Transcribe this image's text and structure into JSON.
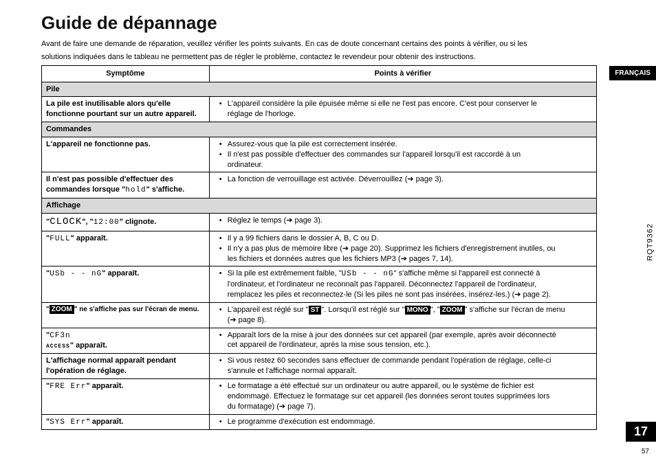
{
  "title": "Guide de dépannage",
  "intro_l1": "Avant de faire une demande de réparation, veuillez vérifier les points suivants. En cas de doute concernant certains des points à vérifier, ou si les",
  "intro_l2": "solutions indiquées dans le tableau ne permettent pas de régler le problème, contactez le revendeur pour obtenir des instructions.",
  "head": {
    "symptom": "Symptôme",
    "points": "Points à vérifier"
  },
  "sec": {
    "pile": "Pile",
    "commandes": "Commandes",
    "affichage": "Affichage"
  },
  "row1": {
    "s_l1": "La pile est inutilisable alors qu'elle",
    "s_l2": "fonctionne pourtant sur un autre appareil.",
    "p1a": "L'appareil considère la pile épuisée même si elle ne l'est pas encore. C'est pour conserver le",
    "p1b": "réglage de l'horloge."
  },
  "row2": {
    "s": "L'appareil ne fonctionne pas.",
    "p1": "Assurez-vous que la pile est correctement insérée.",
    "p2a": "Il n'est pas possible d'effectuer des commandes sur l'appareil lorsqu'il est raccordé à un",
    "p2b": "ordinateur."
  },
  "row3": {
    "s_l1": "Il n'est pas possible d'effectuer des",
    "s_l2a": "commandes lorsque \"",
    "s_l2b": "hold",
    "s_l2c": "\" s'affiche.",
    "p1a": "La fonction de verrouillage est activée. Déverrouillez (",
    "p1b": " page 3)."
  },
  "row4": {
    "s_a": "\"",
    "s_b": "CLOCK",
    "s_c": "\", \"",
    "s_d": "12:00",
    "s_e": "\" clignote.",
    "p1a": "Réglez le temps (",
    "p1b": " page 3)."
  },
  "row5": {
    "s_a": "\"",
    "s_b": "FULL",
    "s_c": "\" apparaît.",
    "p1": "Il y a 99 fichiers dans le dossier A, B, C ou D.",
    "p2a": "Il n'y a pas plus de mémoire libre (",
    "p2b": " page 20). Supprimez les fichiers d'enregistrement inutiles, ou",
    "p2c": "les fichiers et données autres que les fichiers MP3 (",
    "p2d": " pages 7, 14)."
  },
  "row6": {
    "s_a": "\"",
    "s_b": "USb - - nG",
    "s_c": "\" apparaît.",
    "p1a": "Si la pile est extrêmement faible, \"",
    "p1b": "USb - - nG",
    "p1c": "\" s'affiche même si l'appareil est connecté à",
    "p1d": "l'ordinateur, et l'ordinateur ne reconnaît pas l'appareil. Déconnectez l'appareil de l'ordinateur,",
    "p1e": "remplacez les piles et reconnectez-le (Si les piles ne sont pas insérées, insérez-les.) (",
    "p1f": " page 2)."
  },
  "row7": {
    "s_a": "\"",
    "s_b": "ZOOM",
    "s_c": "\" ne s'affiche pas sur l'écran de menu.",
    "p1a": "L'appareil est réglé sur \"",
    "p1b": "ST",
    "p1c": "\". Lorsqu'il est réglé sur \"",
    "p1d": "MONO",
    "p1e": "\", \"",
    "p1f": "ZOOM",
    "p1g": "\" s'affiche sur l'écran de menu",
    "p1h": "(",
    "p1i": " page 8)."
  },
  "row8": {
    "s_a": "\"",
    "s_b": "CF3n",
    "s_b2": "ACCESS",
    "s_c": "\" apparaît.",
    "p1a": "Apparaît lors de la mise à jour des données sur cet appareil (par exemple, après avoir déconnecté",
    "p1b": "cet appareil de l'ordinateur, après la mise sous tension, etc.)."
  },
  "row9": {
    "s_l1": "L'affichage normal apparaît pendant",
    "s_l2": "l'opération de réglage.",
    "p1a": "Si vous restez 60 secondes sans effectuer de commande pendant l'opération de réglage, celle-ci",
    "p1b": "s'annule et l'affichage normal apparaît."
  },
  "row10": {
    "s_a": "\"",
    "s_b": "FRE Err",
    "s_c": "\" apparaît.",
    "p1a": "Le formatage a été effectué sur un ordinateur ou autre appareil, ou le système de fichier est",
    "p1b": "endommagé. Effectuez le formatage sur cet appareil (les données seront toutes supprimées lors",
    "p1c": "du formatage) (",
    "p1d": " page 7)."
  },
  "row11": {
    "s_a": "\"",
    "s_b": "SYS Err",
    "s_c": "\" apparaît.",
    "p1": " Le programme d'exécution est endommagé."
  },
  "lang_tab": "FRANÇAIS",
  "doc_code": "RQT9362",
  "page_big": "17",
  "page_small": "57",
  "arrow": "➔"
}
